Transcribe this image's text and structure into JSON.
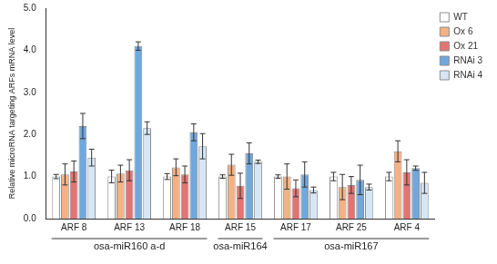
{
  "chart_data": {
    "type": "bar",
    "y_label": "Relative microRNA targeting ARFs mRNA level",
    "categories": [
      "ARF 8",
      "ARF 13",
      "ARF 18",
      "ARF 15",
      "ARF 17",
      "ARF 25",
      "ARF 4"
    ],
    "groups": [
      {
        "label": "osa-miR160 a-d",
        "categories": [
          "ARF 8",
          "ARF 13",
          "ARF 18"
        ]
      },
      {
        "label": "osa-miR164",
        "categories": [
          "ARF 15"
        ]
      },
      {
        "label": "osa-miR167",
        "categories": [
          "ARF 17",
          "ARF 25",
          "ARF 4"
        ]
      }
    ],
    "series": [
      {
        "name": "WT",
        "color": "#ffffff",
        "values": [
          1.0,
          1.0,
          1.0,
          1.0,
          1.0,
          1.0,
          1.0
        ],
        "errors": [
          0.05,
          0.15,
          0.07,
          0.04,
          0.04,
          0.1,
          0.1
        ]
      },
      {
        "name": "Ox 6",
        "color": "#f4b183",
        "values": [
          1.05,
          1.07,
          1.22,
          1.28,
          1.0,
          0.75,
          1.6
        ],
        "errors": [
          0.25,
          0.2,
          0.2,
          0.25,
          0.3,
          0.3,
          0.25
        ]
      },
      {
        "name": "Ox 21",
        "color": "#e57373",
        "values": [
          1.12,
          1.15,
          1.05,
          0.78,
          0.72,
          0.8,
          1.1
        ],
        "errors": [
          0.25,
          0.25,
          0.2,
          0.3,
          0.2,
          0.2,
          0.3
        ]
      },
      {
        "name": "RNAi 3",
        "color": "#6fa8dc",
        "values": [
          2.2,
          4.1,
          2.05,
          1.55,
          1.05,
          0.92,
          1.2
        ],
        "errors": [
          0.3,
          0.1,
          0.2,
          0.25,
          0.3,
          0.35,
          0.05
        ]
      },
      {
        "name": "RNAi 4",
        "color": "#d6e6f5",
        "values": [
          1.45,
          2.15,
          1.72,
          1.35,
          0.68,
          0.75,
          0.85
        ],
        "errors": [
          0.2,
          0.15,
          0.3,
          0.04,
          0.07,
          0.07,
          0.25
        ]
      }
    ],
    "ylim": [
      0,
      5
    ],
    "yticks": [
      {
        "value": 0,
        "label": "0.0"
      },
      {
        "value": 1,
        "label": "1.0"
      },
      {
        "value": 2,
        "label": "2.0"
      },
      {
        "value": 3,
        "label": "3.0"
      },
      {
        "value": 4,
        "label": "4.0"
      },
      {
        "value": 5,
        "label": "5.0"
      }
    ],
    "grid": false,
    "legend": "right"
  }
}
